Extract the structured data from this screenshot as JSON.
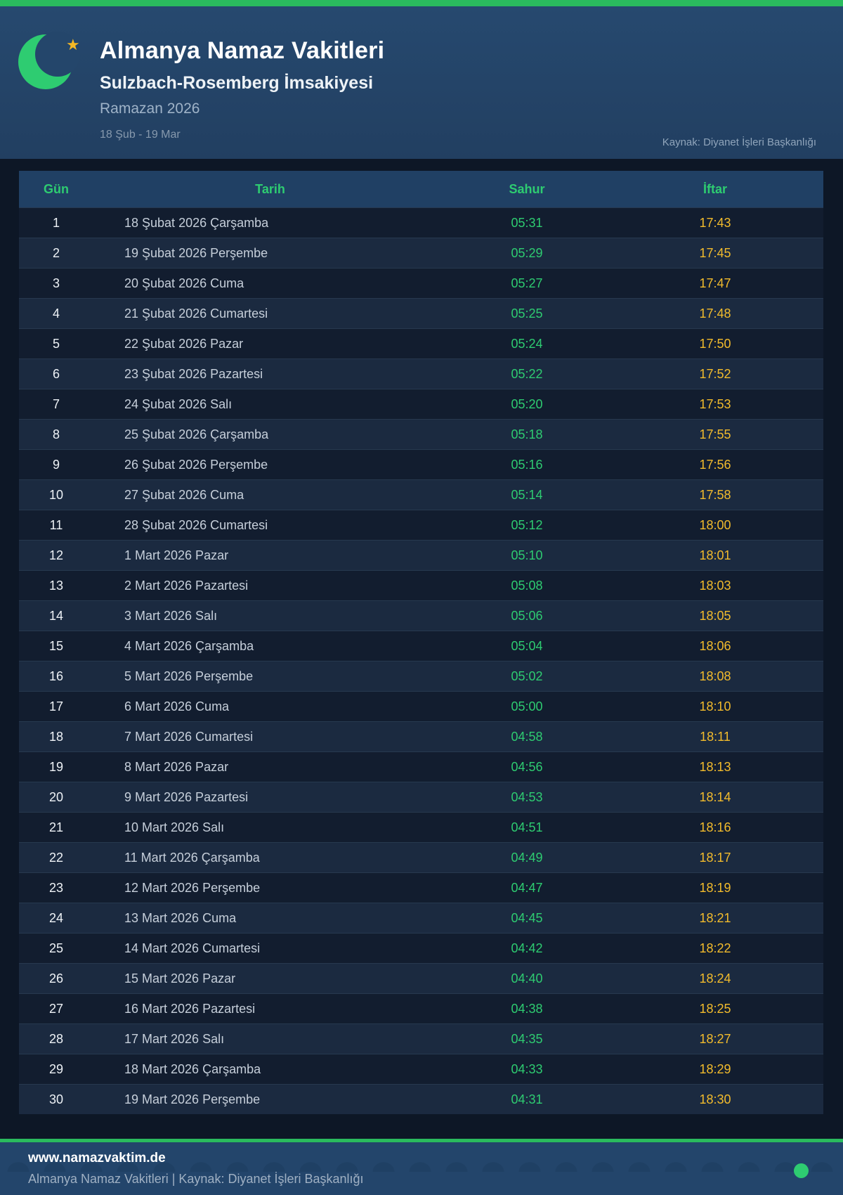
{
  "header": {
    "title": "Almanya Namaz Vakitleri",
    "subtitle": "Sulzbach-Rosemberg İmsakiyesi",
    "period": "Ramazan 2026",
    "date_range": "18 Şub - 19 Mar",
    "source": "Kaynak: Diyanet İşleri Başkanlığı",
    "star_glyph": "★"
  },
  "table": {
    "columns": [
      "Gün",
      "Tarih",
      "Sahur",
      "İftar"
    ],
    "rows": [
      {
        "gun": "1",
        "tarih": "18 Şubat 2026 Çarşamba",
        "sahur": "05:31",
        "iftar": "17:43"
      },
      {
        "gun": "2",
        "tarih": "19 Şubat 2026 Perşembe",
        "sahur": "05:29",
        "iftar": "17:45"
      },
      {
        "gun": "3",
        "tarih": "20 Şubat 2026 Cuma",
        "sahur": "05:27",
        "iftar": "17:47"
      },
      {
        "gun": "4",
        "tarih": "21 Şubat 2026 Cumartesi",
        "sahur": "05:25",
        "iftar": "17:48"
      },
      {
        "gun": "5",
        "tarih": "22 Şubat 2026 Pazar",
        "sahur": "05:24",
        "iftar": "17:50"
      },
      {
        "gun": "6",
        "tarih": "23 Şubat 2026 Pazartesi",
        "sahur": "05:22",
        "iftar": "17:52"
      },
      {
        "gun": "7",
        "tarih": "24 Şubat 2026 Salı",
        "sahur": "05:20",
        "iftar": "17:53"
      },
      {
        "gun": "8",
        "tarih": "25 Şubat 2026 Çarşamba",
        "sahur": "05:18",
        "iftar": "17:55"
      },
      {
        "gun": "9",
        "tarih": "26 Şubat 2026 Perşembe",
        "sahur": "05:16",
        "iftar": "17:56"
      },
      {
        "gun": "10",
        "tarih": "27 Şubat 2026 Cuma",
        "sahur": "05:14",
        "iftar": "17:58"
      },
      {
        "gun": "11",
        "tarih": "28 Şubat 2026 Cumartesi",
        "sahur": "05:12",
        "iftar": "18:00"
      },
      {
        "gun": "12",
        "tarih": "1 Mart 2026 Pazar",
        "sahur": "05:10",
        "iftar": "18:01"
      },
      {
        "gun": "13",
        "tarih": "2 Mart 2026 Pazartesi",
        "sahur": "05:08",
        "iftar": "18:03"
      },
      {
        "gun": "14",
        "tarih": "3 Mart 2026 Salı",
        "sahur": "05:06",
        "iftar": "18:05"
      },
      {
        "gun": "15",
        "tarih": "4 Mart 2026 Çarşamba",
        "sahur": "05:04",
        "iftar": "18:06"
      },
      {
        "gun": "16",
        "tarih": "5 Mart 2026 Perşembe",
        "sahur": "05:02",
        "iftar": "18:08"
      },
      {
        "gun": "17",
        "tarih": "6 Mart 2026 Cuma",
        "sahur": "05:00",
        "iftar": "18:10"
      },
      {
        "gun": "18",
        "tarih": "7 Mart 2026 Cumartesi",
        "sahur": "04:58",
        "iftar": "18:11"
      },
      {
        "gun": "19",
        "tarih": "8 Mart 2026 Pazar",
        "sahur": "04:56",
        "iftar": "18:13"
      },
      {
        "gun": "20",
        "tarih": "9 Mart 2026 Pazartesi",
        "sahur": "04:53",
        "iftar": "18:14"
      },
      {
        "gun": "21",
        "tarih": "10 Mart 2026 Salı",
        "sahur": "04:51",
        "iftar": "18:16"
      },
      {
        "gun": "22",
        "tarih": "11 Mart 2026 Çarşamba",
        "sahur": "04:49",
        "iftar": "18:17"
      },
      {
        "gun": "23",
        "tarih": "12 Mart 2026 Perşembe",
        "sahur": "04:47",
        "iftar": "18:19"
      },
      {
        "gun": "24",
        "tarih": "13 Mart 2026 Cuma",
        "sahur": "04:45",
        "iftar": "18:21"
      },
      {
        "gun": "25",
        "tarih": "14 Mart 2026 Cumartesi",
        "sahur": "04:42",
        "iftar": "18:22"
      },
      {
        "gun": "26",
        "tarih": "15 Mart 2026 Pazar",
        "sahur": "04:40",
        "iftar": "18:24"
      },
      {
        "gun": "27",
        "tarih": "16 Mart 2026 Pazartesi",
        "sahur": "04:38",
        "iftar": "18:25"
      },
      {
        "gun": "28",
        "tarih": "17 Mart 2026 Salı",
        "sahur": "04:35",
        "iftar": "18:27"
      },
      {
        "gun": "29",
        "tarih": "18 Mart 2026 Çarşamba",
        "sahur": "04:33",
        "iftar": "18:29"
      },
      {
        "gun": "30",
        "tarih": "19 Mart 2026 Perşembe",
        "sahur": "04:31",
        "iftar": "18:30"
      }
    ]
  },
  "footer": {
    "website": "www.namazvaktim.de",
    "tagline": "Almanya Namaz Vakitleri | Kaynak: Diyanet İşleri Başkanlığı"
  },
  "colors": {
    "accent_green": "#2ecc71",
    "accent_yellow": "#f2bb2c",
    "top_bar_green": "#2abb5e",
    "header_bg": "#24466b",
    "row_odd": "#121d2f",
    "row_even": "#1b2a40",
    "page_bg": "#0d1726"
  }
}
